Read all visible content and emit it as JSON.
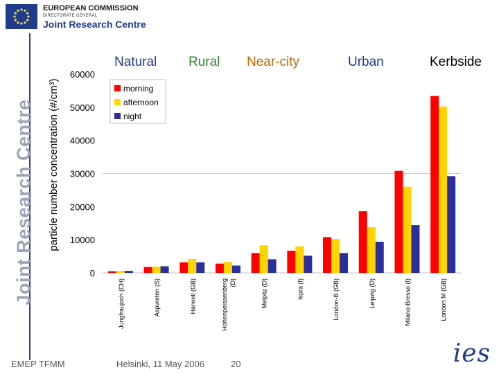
{
  "header": {
    "org_line1": "EUROPEAN COMMISSION",
    "org_line2": "DIRECTORATE GENERAL",
    "org_line3": "Joint Research Centre",
    "side_brand": "Joint Research Centre"
  },
  "footer": {
    "left": "EMEP TFMM",
    "center": "Helsinki, 11 May 2006",
    "page": "20",
    "logo_text": "ies"
  },
  "categories_top": [
    {
      "label": "Natural",
      "color": "#1f3b8c"
    },
    {
      "label": "Rural",
      "color": "#2e8b2e"
    },
    {
      "label": "Near-city",
      "color": "#c86400"
    },
    {
      "label": "Urban",
      "color": "#1f3b8c"
    },
    {
      "label": "Kerbside",
      "color": "#000000"
    }
  ],
  "colors": {
    "morning": "#ff0000",
    "afternoon": "#ffd400",
    "night": "#2b2f9e",
    "brand_blue": "#1f3b8c"
  },
  "chart_data": {
    "type": "bar",
    "title": "",
    "xlabel": "",
    "ylabel": "particle number concentration (#/cm³)",
    "ylim": [
      0,
      60000
    ],
    "yticks": [
      "0",
      "10000",
      "20000",
      "30000",
      "40000",
      "50000",
      "60000"
    ],
    "legend_position": "top-left",
    "categories": [
      "Jungfraujoch (CH)",
      "Aspvreten (S)",
      "Harwell (GB)",
      "Hohenpeissenberg (D)",
      "Melpitz (D)",
      "Ispra (I)",
      "London-B (GB)",
      "Leipzig (D)",
      "Milano-Bresso (I)",
      "London M (GB)"
    ],
    "series": [
      {
        "name": "morning",
        "values": [
          500,
          1800,
          3200,
          2800,
          6000,
          6700,
          10800,
          18600,
          30800,
          53400
        ]
      },
      {
        "name": "afternoon",
        "values": [
          600,
          1900,
          4200,
          3300,
          8300,
          8000,
          10200,
          13800,
          26000,
          50200
        ]
      },
      {
        "name": "night",
        "values": [
          600,
          2000,
          3200,
          2200,
          4100,
          5200,
          6000,
          9400,
          14400,
          29200
        ]
      }
    ]
  }
}
